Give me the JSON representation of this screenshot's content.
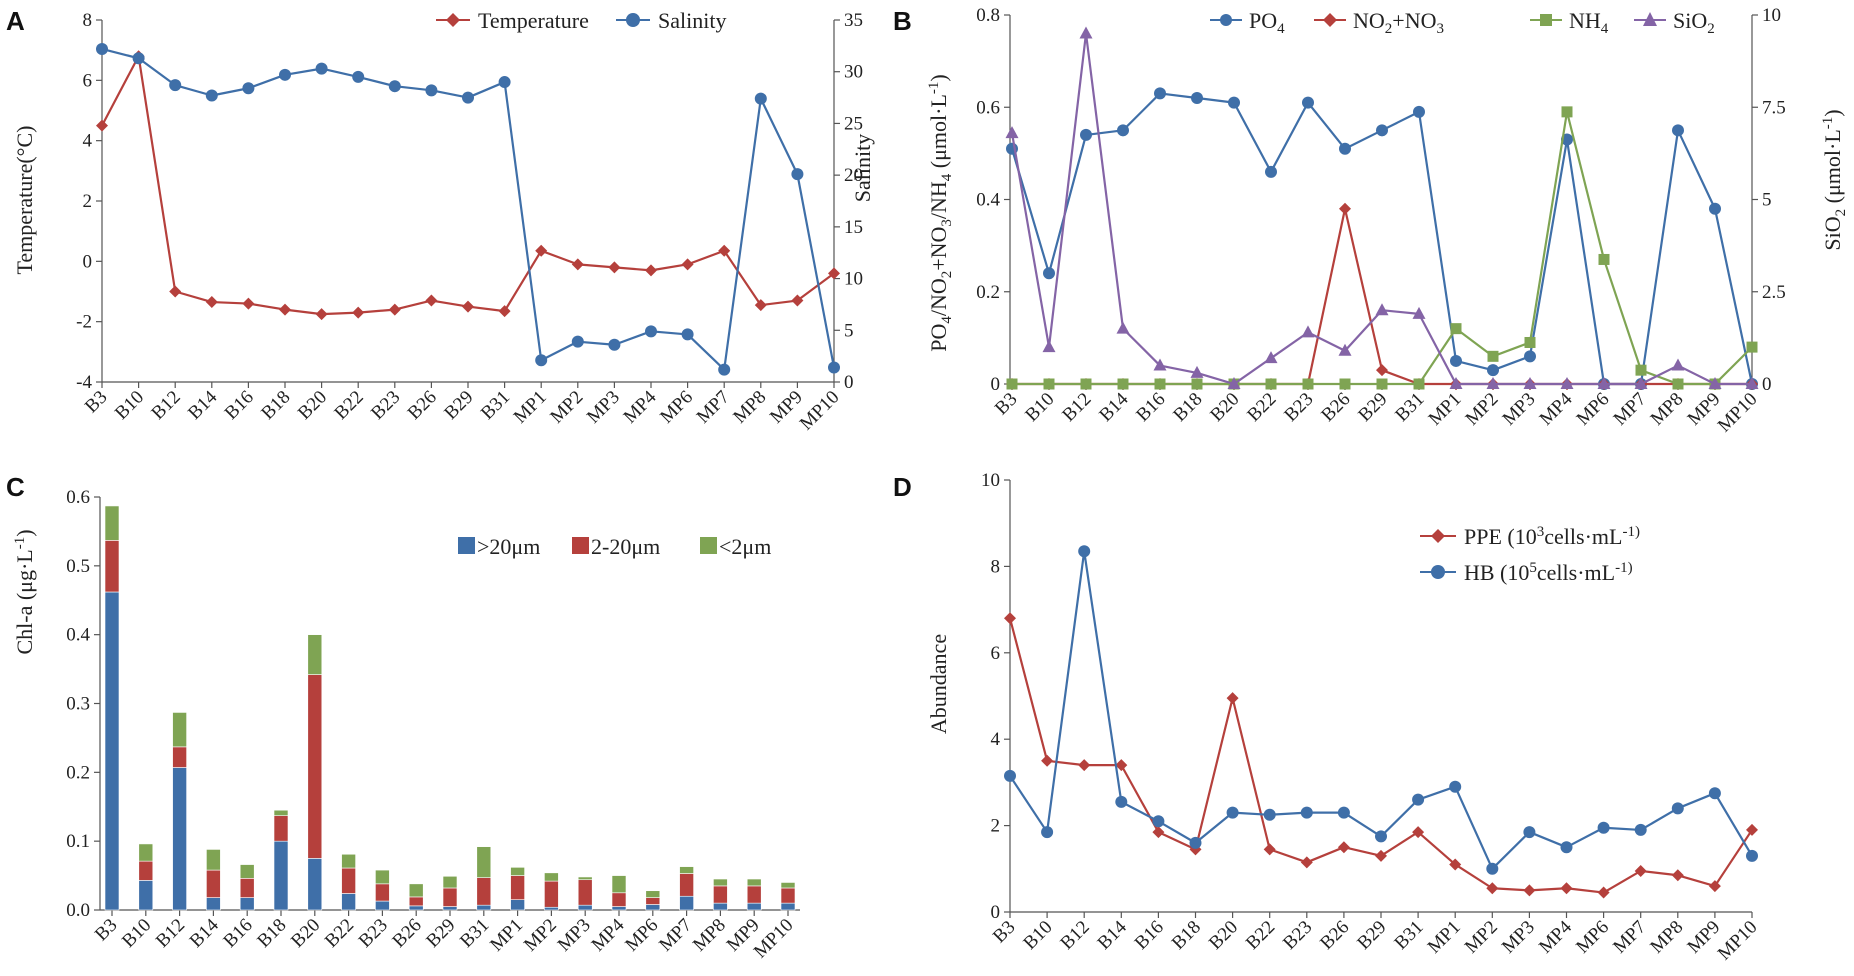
{
  "colors": {
    "red": "#b5403c",
    "blue": "#3f6fa8",
    "green": "#7fa453",
    "purple": "#8464a6",
    "axis": "#555555"
  },
  "panels": {
    "a": "A",
    "b": "B",
    "c": "C",
    "d": "D"
  },
  "chart_data": [
    {
      "id": "A",
      "type": "line",
      "categories": [
        "B3",
        "B10",
        "B12",
        "B14",
        "B16",
        "B18",
        "B20",
        "B22",
        "B23",
        "B26",
        "B29",
        "B31",
        "MP1",
        "MP2",
        "MP3",
        "MP4",
        "MP6",
        "MP7",
        "MP8",
        "MP9",
        "MP10"
      ],
      "ylabel": "Temperature(°C)",
      "y2label": "Salinity",
      "ylim": [
        -4,
        8
      ],
      "yticks": [
        "-4",
        "-2",
        "0",
        "2",
        "4",
        "6",
        "8"
      ],
      "y2lim": [
        0,
        35
      ],
      "y2ticks": [
        "0",
        "5",
        "10",
        "15",
        "20",
        "25",
        "30",
        "35"
      ],
      "series": [
        {
          "name": "Temperature",
          "axis": "left",
          "color": "red",
          "marker": "diamond",
          "values": [
            4.5,
            6.8,
            -1.0,
            -1.35,
            -1.4,
            -1.6,
            -1.75,
            -1.7,
            -1.6,
            -1.3,
            -1.5,
            -1.65,
            0.35,
            -0.1,
            -0.2,
            -0.3,
            -0.1,
            0.35,
            -1.45,
            -1.3,
            -0.4
          ]
        },
        {
          "name": "Salinity",
          "axis": "right",
          "color": "blue",
          "marker": "circle",
          "values": [
            32.2,
            31.3,
            28.7,
            27.7,
            28.4,
            29.7,
            30.3,
            29.5,
            28.6,
            28.2,
            27.5,
            29.0,
            2.1,
            3.9,
            3.6,
            4.9,
            4.6,
            1.2,
            27.4,
            20.1,
            1.4
          ]
        }
      ]
    },
    {
      "id": "B",
      "type": "line",
      "categories": [
        "B3",
        "B10",
        "B12",
        "B14",
        "B16",
        "B18",
        "B20",
        "B22",
        "B23",
        "B26",
        "B29",
        "B31",
        "MP1",
        "MP2",
        "MP3",
        "MP4",
        "MP6",
        "MP7",
        "MP8",
        "MP9",
        "MP10"
      ],
      "ylabel": "PO4/NO2+NO3/NH4 (μmol·L-1)",
      "y2label": "SiO2 (μmol·L-1)",
      "ylim": [
        0,
        0.8
      ],
      "yticks": [
        "0",
        "0.2",
        "0.4",
        "0.6",
        "0.8"
      ],
      "y2lim": [
        0,
        10
      ],
      "y2ticks": [
        "0",
        "2.5",
        "5",
        "7.5",
        "10"
      ],
      "series": [
        {
          "name": "PO4",
          "axis": "left",
          "color": "blue",
          "marker": "circle",
          "values": [
            0.51,
            0.24,
            0.54,
            0.55,
            0.63,
            0.62,
            0.61,
            0.46,
            0.61,
            0.51,
            0.55,
            0.59,
            0.05,
            0.03,
            0.06,
            0.53,
            0.0,
            0.0,
            0.55,
            0.38,
            0.0
          ]
        },
        {
          "name": "NO2+NO3",
          "axis": "left",
          "color": "red",
          "marker": "diamond",
          "values": [
            0,
            0,
            0,
            0,
            0,
            0,
            0,
            0,
            0,
            0.38,
            0.03,
            0,
            0,
            0,
            0,
            0,
            0,
            0,
            0,
            0,
            0
          ]
        },
        {
          "name": "NH4",
          "axis": "left",
          "color": "green",
          "marker": "square",
          "values": [
            0,
            0,
            0,
            0,
            0,
            0,
            0,
            0,
            0,
            0,
            0,
            0,
            0.12,
            0.06,
            0.09,
            0.59,
            0.27,
            0.03,
            0,
            0,
            0.08
          ]
        },
        {
          "name": "SiO2",
          "axis": "right",
          "color": "purple",
          "marker": "triangle",
          "values": [
            6.8,
            1.0,
            9.5,
            1.5,
            0.5,
            0.3,
            0.0,
            0.7,
            1.4,
            0.9,
            2.0,
            1.9,
            0.0,
            0.0,
            0.0,
            0.0,
            0.0,
            0.0,
            0.5,
            0.0,
            0.0
          ]
        }
      ],
      "legend_labels": [
        "PO",
        "NO",
        "+NO",
        "NH",
        "SiO"
      ],
      "legend_subs": [
        "4",
        "2",
        "3",
        "4",
        "2"
      ]
    },
    {
      "id": "C",
      "type": "bar",
      "stacked": true,
      "categories": [
        "B3",
        "B10",
        "B12",
        "B14",
        "B16",
        "B18",
        "B20",
        "B22",
        "B23",
        "B26",
        "B29",
        "B31",
        "MP1",
        "MP2",
        "MP3",
        "MP4",
        "MP6",
        "MP7",
        "MP8",
        "MP9",
        "MP10"
      ],
      "ylabel": "Chl-a (μg·L-1)",
      "ylim": [
        0,
        0.6
      ],
      "yticks": [
        "0.0",
        "0.1",
        "0.2",
        "0.3",
        "0.4",
        "0.5",
        "0.6"
      ],
      "series": [
        {
          "name": ">20μm",
          "color": "blue",
          "values": [
            0.462,
            0.043,
            0.207,
            0.018,
            0.018,
            0.1,
            0.075,
            0.024,
            0.013,
            0.006,
            0.005,
            0.007,
            0.015,
            0.004,
            0.007,
            0.005,
            0.008,
            0.02,
            0.01,
            0.01,
            0.01
          ]
        },
        {
          "name": "2-20μm",
          "color": "red",
          "values": [
            0.075,
            0.028,
            0.03,
            0.04,
            0.028,
            0.037,
            0.267,
            0.037,
            0.025,
            0.013,
            0.027,
            0.04,
            0.035,
            0.038,
            0.037,
            0.02,
            0.01,
            0.033,
            0.025,
            0.025,
            0.022
          ]
        },
        {
          "name": "<2μm",
          "color": "green",
          "values": [
            0.05,
            0.025,
            0.05,
            0.03,
            0.02,
            0.008,
            0.058,
            0.02,
            0.02,
            0.019,
            0.017,
            0.045,
            0.012,
            0.012,
            0.004,
            0.025,
            0.01,
            0.01,
            0.01,
            0.01,
            0.008
          ]
        }
      ]
    },
    {
      "id": "D",
      "type": "line",
      "categories": [
        "B3",
        "B10",
        "B12",
        "B14",
        "B16",
        "B18",
        "B20",
        "B22",
        "B23",
        "B26",
        "B29",
        "B31",
        "MP1",
        "MP2",
        "MP3",
        "MP4",
        "MP6",
        "MP7",
        "MP8",
        "MP9",
        "MP10"
      ],
      "ylabel": "Abundance",
      "ylim": [
        0,
        10
      ],
      "yticks": [
        "0",
        "2",
        "4",
        "6",
        "8",
        "10"
      ],
      "series": [
        {
          "name": "PPE (10^3 cells·mL-1)",
          "color": "red",
          "marker": "diamond",
          "values": [
            6.8,
            3.5,
            3.4,
            3.4,
            1.85,
            1.45,
            4.95,
            1.45,
            1.15,
            1.5,
            1.3,
            1.85,
            1.1,
            0.55,
            0.5,
            0.55,
            0.45,
            0.95,
            0.85,
            0.6,
            1.9
          ]
        },
        {
          "name": "HB (10^5 cells·mL-1)",
          "color": "blue",
          "marker": "circle",
          "values": [
            3.15,
            1.85,
            8.35,
            2.55,
            2.1,
            1.6,
            2.3,
            2.25,
            2.3,
            2.3,
            1.75,
            2.6,
            2.9,
            1.0,
            1.85,
            1.5,
            1.95,
            1.9,
            2.4,
            2.75,
            1.3
          ]
        }
      ],
      "legend_labels": [
        "PPE (10",
        "cells·mL",
        "HB (10",
        "cells·mL"
      ],
      "legend_sups": [
        "3",
        "-1)",
        "5",
        "-1)"
      ]
    }
  ]
}
